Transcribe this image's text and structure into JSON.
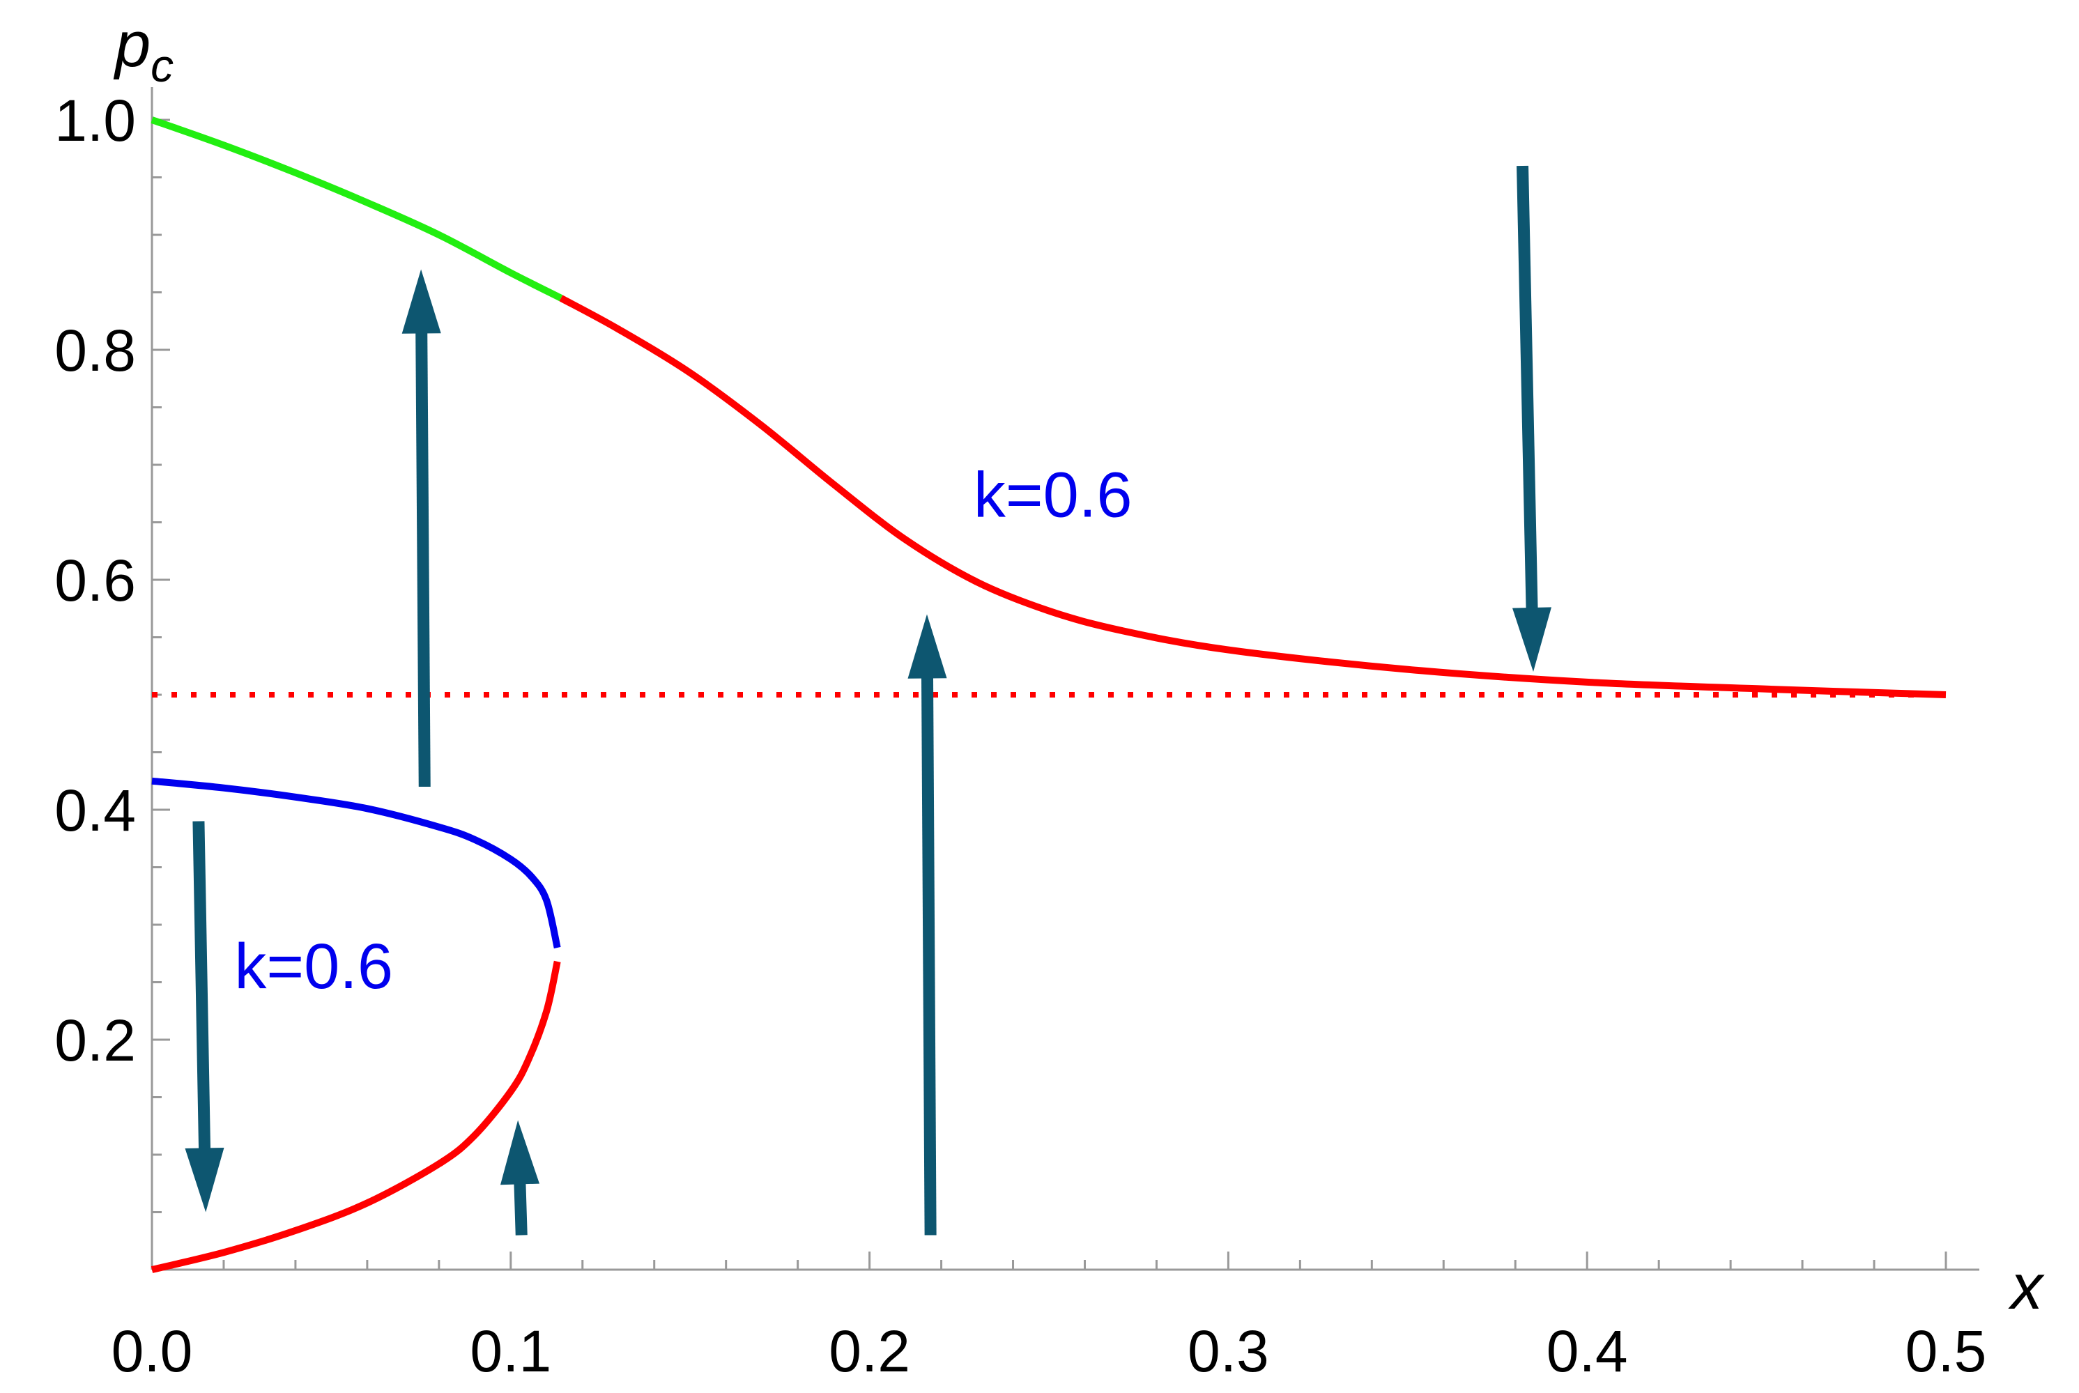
{
  "chart_data": {
    "type": "line",
    "xlabel": "x",
    "ylabel": "p",
    "ylabel_subscript": "c",
    "xlim": [
      0.0,
      0.5
    ],
    "ylim": [
      0.0,
      1.0
    ],
    "x_ticks": [
      "0.0",
      "0.1",
      "0.2",
      "0.3",
      "0.4",
      "0.5"
    ],
    "y_ticks": [
      "0.2",
      "0.4",
      "0.6",
      "0.8",
      "1.0"
    ],
    "grid": false,
    "colors": {
      "stable": "#22ee11",
      "unstable": "#ff0000",
      "lower_branch": "#0000ee",
      "arrow": "#0d5670",
      "asymptote": "#ff0000"
    },
    "series": [
      {
        "color": "green",
        "x": [
          0.0,
          0.02,
          0.04,
          0.06,
          0.08,
          0.1,
          0.114
        ],
        "y": [
          1.0,
          0.978,
          0.954,
          0.928,
          0.9,
          0.867,
          0.845
        ]
      },
      {
        "color": "red",
        "x": [
          0.114,
          0.13,
          0.15,
          0.17,
          0.19,
          0.21,
          0.23,
          0.25,
          0.27,
          0.3,
          0.35,
          0.4,
          0.45,
          0.5
        ],
        "y": [
          0.845,
          0.818,
          0.78,
          0.734,
          0.683,
          0.635,
          0.598,
          0.573,
          0.556,
          0.539,
          0.522,
          0.511,
          0.505,
          0.5
        ]
      },
      {
        "color": "blue",
        "x": [
          0.0,
          0.02,
          0.04,
          0.06,
          0.08,
          0.09,
          0.1,
          0.106,
          0.11,
          0.113
        ],
        "y": [
          0.425,
          0.419,
          0.411,
          0.401,
          0.385,
          0.374,
          0.357,
          0.341,
          0.321,
          0.28
        ]
      },
      {
        "color": "red",
        "x": [
          0.113,
          0.11,
          0.105,
          0.1,
          0.09,
          0.08,
          0.06,
          0.04,
          0.02,
          0.0
        ],
        "y": [
          0.268,
          0.225,
          0.183,
          0.155,
          0.117,
          0.092,
          0.058,
          0.034,
          0.015,
          0.0
        ]
      }
    ],
    "reference_lines": [
      {
        "y": 0.5,
        "x_from": 0.0,
        "x_to": 0.5,
        "style": "dotted",
        "color": "red"
      }
    ],
    "arrows": [
      {
        "x_from": 0.076,
        "y_from": 0.42,
        "x_to": 0.075,
        "y_to": 0.87
      },
      {
        "x_from": 0.013,
        "y_from": 0.39,
        "x_to": 0.015,
        "y_to": 0.05
      },
      {
        "x_from": 0.103,
        "y_from": 0.03,
        "x_to": 0.102,
        "y_to": 0.13
      },
      {
        "x_from": 0.217,
        "y_from": 0.03,
        "x_to": 0.216,
        "y_to": 0.57
      },
      {
        "x_from": 0.382,
        "y_from": 0.96,
        "x_to": 0.385,
        "y_to": 0.52
      }
    ],
    "annotations": [
      {
        "text": "k=0.6",
        "x": 0.229,
        "y": 0.655,
        "color": "#0000ee"
      },
      {
        "text": "k=0.6",
        "x": 0.023,
        "y": 0.245,
        "color": "#0000ee"
      }
    ]
  }
}
